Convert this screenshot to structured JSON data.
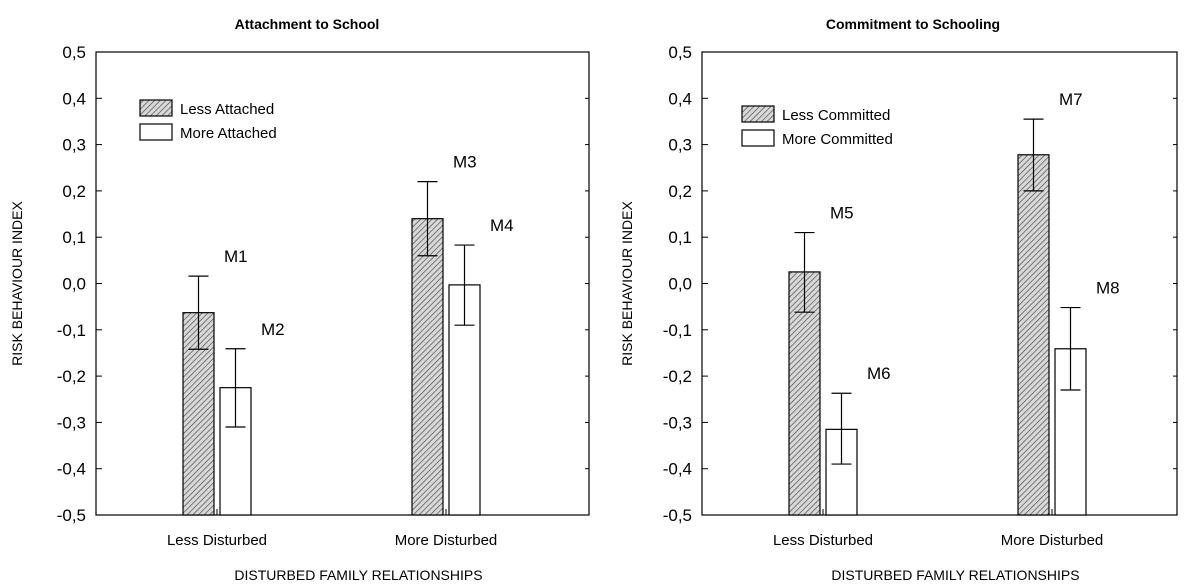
{
  "chart_data": [
    {
      "type": "bar",
      "title": "Attachment to School",
      "xlabel": "DISTURBED FAMILY RELATIONSHIPS",
      "ylabel": "RISK BEHAVIOUR INDEX",
      "categories": [
        "Less Disturbed",
        "More Disturbed"
      ],
      "ylim": [
        -0.5,
        0.5
      ],
      "yticks": [
        "0,5",
        "0,4",
        "0,3",
        "0,2",
        "0,1",
        "0,0",
        "-0,1",
        "-0,2",
        "-0,3",
        "-0,4",
        "-0,5"
      ],
      "legend_position": "top-left",
      "grid": false,
      "series": [
        {
          "name": "Less Attached",
          "pattern": "hatched",
          "color": "#bbbbbb",
          "values": [
            -0.063,
            0.14
          ],
          "err_low": [
            -0.142,
            0.06
          ],
          "err_high": [
            0.016,
            0.22
          ],
          "labels": [
            "M1",
            "M3"
          ]
        },
        {
          "name": "More Attached",
          "pattern": "solid",
          "color": "#ffffff",
          "values": [
            -0.225,
            -0.003
          ],
          "err_low": [
            -0.31,
            -0.09
          ],
          "err_high": [
            -0.141,
            0.083
          ],
          "labels": [
            "M2",
            "M4"
          ]
        }
      ]
    },
    {
      "type": "bar",
      "title": "Commitment to Schooling",
      "xlabel": "DISTURBED FAMILY RELATIONSHIPS",
      "ylabel": "RISK BEHAVIOUR INDEX",
      "categories": [
        "Less Disturbed",
        "More Disturbed"
      ],
      "ylim": [
        -0.5,
        0.5
      ],
      "yticks": [
        "0,5",
        "0,4",
        "0,3",
        "0,2",
        "0,1",
        "0,0",
        "-0,1",
        "-0,2",
        "-0,3",
        "-0,4",
        "-0,5"
      ],
      "legend_position": "top-left",
      "grid": false,
      "series": [
        {
          "name": "Less Committed",
          "pattern": "hatched",
          "color": "#bbbbbb",
          "values": [
            0.025,
            0.278
          ],
          "err_low": [
            -0.062,
            0.2
          ],
          "err_high": [
            0.11,
            0.355
          ],
          "labels": [
            "M5",
            "M7"
          ]
        },
        {
          "name": "More Committed",
          "pattern": "solid",
          "color": "#ffffff",
          "values": [
            -0.315,
            -0.141
          ],
          "err_low": [
            -0.39,
            -0.23
          ],
          "err_high": [
            -0.237,
            -0.052
          ],
          "labels": [
            "M6",
            "M8"
          ]
        }
      ]
    }
  ]
}
